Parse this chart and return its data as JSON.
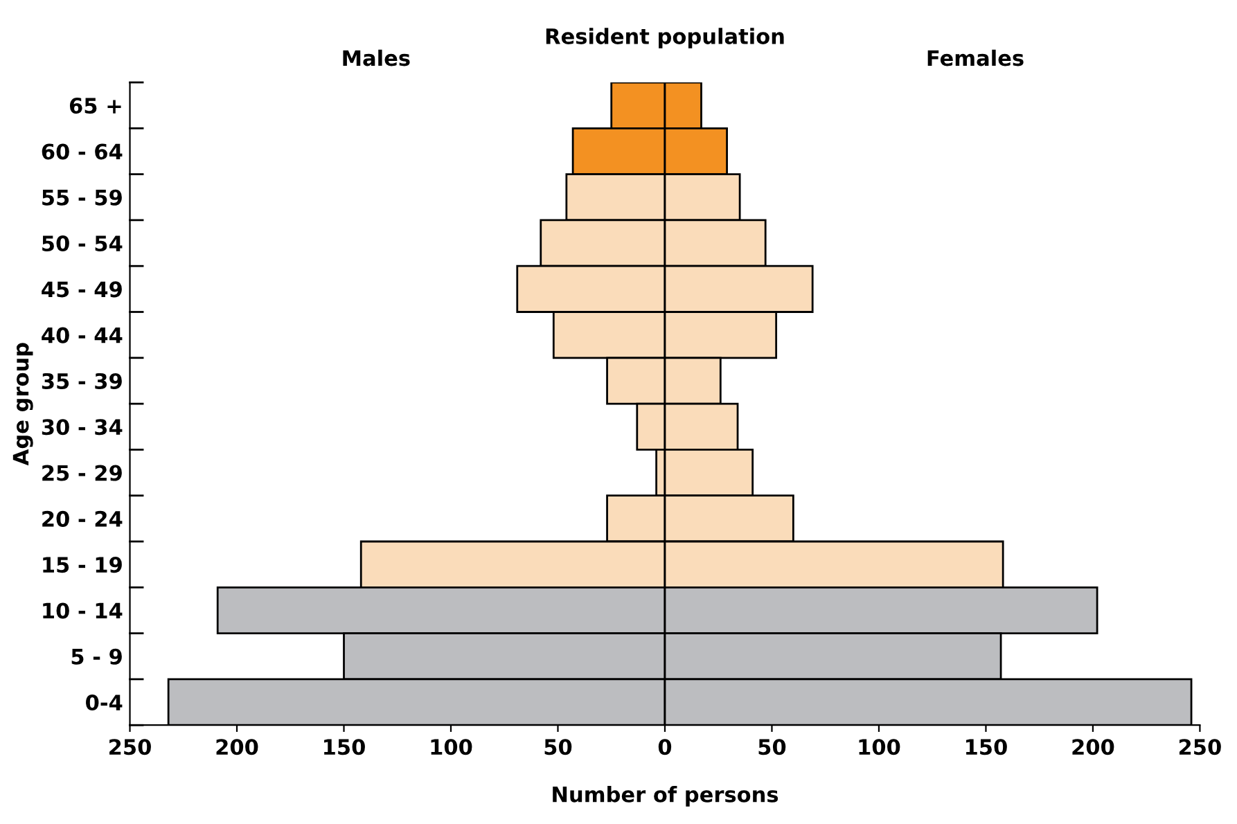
{
  "chart_data": {
    "type": "bar",
    "orientation": "horizontal",
    "title": "Resident population",
    "xlabel": "Number of persons",
    "ylabel": "Age group",
    "categories": [
      "65 +",
      "60 - 64",
      "55 - 59",
      "50 - 54",
      "45 - 49",
      "40 - 44",
      "35 - 39",
      "30 - 34",
      "25 - 29",
      "20 - 24",
      "15 - 19",
      "10 - 14",
      "5 - 9",
      "0-4"
    ],
    "series": [
      {
        "values": [
          -25,
          -43,
          -46,
          -58,
          -69,
          -52,
          -27,
          -13,
          -4,
          -27,
          -142,
          -209,
          -150,
          -232
        ],
        "colors": [
          "#f39122",
          "#f39122",
          "#fadcba",
          "#fadcba",
          "#fadcba",
          "#fadcba",
          "#fadcba",
          "#fadcba",
          "#fadcba",
          "#fadcba",
          "#fadcba",
          "#bcbdc0",
          "#bcbdc0",
          "#bcbdc0"
        ]
      },
      {
        "values": [
          17,
          29,
          35,
          47,
          69,
          52,
          26,
          34,
          41,
          60,
          158,
          202,
          157,
          246
        ],
        "colors": [
          "#f39122",
          "#f39122",
          "#fadcba",
          "#fadcba",
          "#fadcba",
          "#fadcba",
          "#fadcba",
          "#fadcba",
          "#fadcba",
          "#fadcba",
          "#fadcba",
          "#bcbdc0",
          "#bcbdc0",
          "#bcbdc0"
        ]
      }
    ],
    "stacked": true,
    "annotations": [
      "Males",
      "Females"
    ],
    "xlim": [
      -250,
      250
    ],
    "xticks": [
      {
        "value": -250,
        "label": "250"
      },
      {
        "value": -200,
        "label": "200"
      },
      {
        "value": -150,
        "label": "150"
      },
      {
        "value": -100,
        "label": "100"
      },
      {
        "value": -50,
        "label": "50"
      },
      0,
      50,
      100,
      150,
      200,
      250
    ],
    "grid": false
  }
}
